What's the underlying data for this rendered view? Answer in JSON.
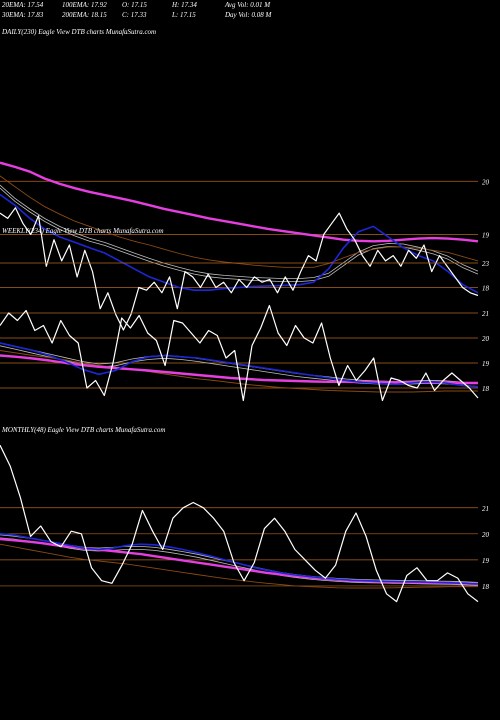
{
  "header": {
    "stats": [
      [
        "20EMA: 17.54",
        "100EMA: 17.92",
        "O: 17.15",
        "H: 17.34",
        "Avg Vol: 0.01 M"
      ],
      [
        "30EMA: 17.83",
        "200EMA: 18.15",
        "C: 17.33",
        "L: 17.15",
        "Day Vol: 0.08 M"
      ]
    ]
  },
  "colors": {
    "background": "#000000",
    "price": "#ffffff",
    "ema_short": "#1c27d6",
    "ema_long": "#e53fe0",
    "ema_mid_brown": "#8a4a12",
    "ema_grey": "#bdbdbd",
    "gridline": "#b4641e"
  },
  "chart_data": [
    {
      "type": "line",
      "panel": "daily",
      "title": "DAILY(230) Eagle  View  DTB charts MunafaSutra.com",
      "y_ticks": [
        "20",
        "19",
        "18"
      ],
      "ylim": [
        17.2,
        20.4
      ],
      "series": [
        {
          "key": "price",
          "values": [
            19.4,
            19.3,
            19.5,
            19.2,
            19.0,
            19.35,
            18.4,
            18.9,
            18.5,
            18.8,
            18.2,
            18.7,
            18.3,
            17.6,
            17.9,
            17.5,
            17.2,
            17.5,
            18.0,
            17.95,
            18.1,
            17.9,
            18.2,
            17.6,
            18.3,
            18.2,
            18.0,
            18.25,
            18.0,
            18.1,
            17.9,
            18.15,
            18.0,
            18.2,
            18.1,
            18.15,
            17.9,
            18.2,
            17.95,
            18.3,
            18.6,
            18.5,
            19.0,
            19.2,
            19.4,
            19.1,
            18.9,
            18.6,
            18.4,
            18.7,
            18.5,
            18.6,
            18.4,
            18.7,
            18.55,
            18.8,
            18.3,
            18.6,
            18.4,
            18.2,
            18.0,
            17.9,
            17.85
          ]
        },
        {
          "key": "ema_short",
          "values": [
            19.75,
            19.55,
            19.3,
            19.1,
            18.95,
            18.85,
            18.75,
            18.65,
            18.5,
            18.35,
            18.2,
            18.1,
            18.0,
            17.95,
            17.95,
            17.98,
            18.0,
            18.02,
            18.03,
            18.04,
            18.05,
            18.1,
            18.35,
            18.75,
            19.05,
            19.15,
            18.95,
            18.75,
            18.6,
            18.5,
            18.3,
            18.05,
            17.9
          ]
        },
        {
          "key": "ema_long",
          "values": [
            20.35,
            20.27,
            20.18,
            20.05,
            19.95,
            19.87,
            19.8,
            19.74,
            19.68,
            19.62,
            19.55,
            19.48,
            19.42,
            19.36,
            19.3,
            19.25,
            19.2,
            19.15,
            19.1,
            19.06,
            19.02,
            18.98,
            18.94,
            18.9,
            18.88,
            18.87,
            18.88,
            18.9,
            18.92,
            18.93,
            18.92,
            18.9,
            18.87
          ]
        },
        {
          "key": "ema_grey",
          "values": [
            19.9,
            19.65,
            19.45,
            19.27,
            19.12,
            19.0,
            18.9,
            18.82,
            18.72,
            18.62,
            18.52,
            18.43,
            18.35,
            18.28,
            18.23,
            18.2,
            18.18,
            18.16,
            18.15,
            18.14,
            18.14,
            18.16,
            18.24,
            18.44,
            18.64,
            18.76,
            18.8,
            18.79,
            18.73,
            18.66,
            18.56,
            18.4,
            18.28
          ]
        },
        {
          "key": "ema_mid_brown",
          "values": [
            20.1,
            19.9,
            19.7,
            19.52,
            19.38,
            19.25,
            19.15,
            19.05,
            18.95,
            18.87,
            18.8,
            18.72,
            18.64,
            18.57,
            18.52,
            18.48,
            18.45,
            18.42,
            18.4,
            18.38,
            18.38,
            18.38,
            18.45,
            18.56,
            18.66,
            18.72,
            18.76,
            18.76,
            18.74,
            18.7,
            18.66,
            18.58,
            18.5
          ]
        }
      ]
    },
    {
      "type": "line",
      "panel": "weekly",
      "title": "WEEKLY(234) Eagle  View  DTB charts MunafaSutra.com",
      "y_ticks": [
        "23",
        "21",
        "20",
        "19",
        "18"
      ],
      "ylim": [
        16.8,
        23.6
      ],
      "series": [
        {
          "key": "price",
          "values": [
            20.5,
            21.0,
            20.7,
            21.1,
            20.3,
            20.5,
            19.8,
            20.7,
            20.1,
            19.8,
            18.0,
            18.3,
            17.7,
            19.0,
            20.8,
            20.4,
            20.9,
            20.2,
            19.9,
            18.9,
            20.7,
            20.6,
            20.2,
            19.8,
            20.3,
            20.1,
            19.2,
            19.5,
            17.5,
            19.7,
            20.4,
            21.3,
            20.2,
            19.7,
            20.5,
            20.0,
            19.8,
            20.6,
            19.2,
            18.1,
            18.9,
            18.3,
            18.7,
            19.2,
            17.5,
            18.4,
            18.3,
            18.1,
            18.0,
            18.6,
            17.9,
            18.3,
            18.6,
            18.3,
            18.0,
            17.6
          ]
        },
        {
          "key": "ema_short",
          "values": [
            19.8,
            19.65,
            19.5,
            19.3,
            19.05,
            18.75,
            18.55,
            18.7,
            19.05,
            19.25,
            19.3,
            19.25,
            19.2,
            19.1,
            19.0,
            18.9,
            18.8,
            18.7,
            18.6,
            18.5,
            18.4,
            18.3,
            18.22,
            18.18,
            18.15,
            18.2,
            18.25,
            18.2,
            18.1,
            18.05
          ]
        },
        {
          "key": "ema_long",
          "values": [
            19.3,
            19.25,
            19.18,
            19.1,
            19.0,
            18.92,
            18.85,
            18.8,
            18.75,
            18.7,
            18.64,
            18.58,
            18.52,
            18.46,
            18.4,
            18.36,
            18.32,
            18.3,
            18.28,
            18.26,
            18.25,
            18.25,
            18.24,
            18.24,
            18.23,
            18.23,
            18.22,
            18.22,
            18.2,
            18.2
          ]
        },
        {
          "key": "ema_grey",
          "values": [
            19.75,
            19.6,
            19.45,
            19.3,
            19.15,
            19.0,
            18.9,
            18.95,
            19.1,
            19.2,
            19.25,
            19.2,
            19.12,
            19.02,
            18.92,
            18.82,
            18.72,
            18.62,
            18.52,
            18.45,
            18.38,
            18.3,
            18.25,
            18.22,
            18.2,
            18.22,
            18.25,
            18.23,
            18.18,
            18.12
          ]
        },
        {
          "key": "ema_mid_brown",
          "values": [
            19.5,
            19.4,
            19.3,
            19.22,
            19.12,
            19.0,
            18.9,
            18.82,
            18.75,
            18.66,
            18.56,
            18.46,
            18.37,
            18.3,
            18.22,
            18.14,
            18.08,
            18.02,
            17.98,
            17.94,
            17.9,
            17.88,
            17.86,
            17.84,
            17.84,
            17.84,
            17.86,
            17.88,
            17.88,
            17.88
          ]
        }
      ]
    },
    {
      "type": "line",
      "panel": "monthly",
      "title": "MONTHLY(48) Eagle  View  DTB charts MunafaSutra.com",
      "y_ticks": [
        "21",
        "20",
        "19",
        "18"
      ],
      "ylim": [
        17.0,
        23.6
      ],
      "series": [
        {
          "key": "price",
          "values": [
            23.4,
            22.6,
            21.4,
            19.9,
            20.3,
            19.7,
            19.5,
            20.1,
            20.0,
            18.7,
            18.2,
            18.1,
            18.8,
            19.6,
            20.9,
            20.1,
            19.4,
            20.6,
            21.0,
            21.2,
            21.0,
            20.6,
            20.1,
            18.9,
            18.2,
            18.9,
            20.2,
            20.6,
            20.1,
            19.4,
            19.0,
            18.6,
            18.3,
            18.8,
            20.1,
            20.8,
            19.9,
            18.6,
            17.7,
            17.4,
            18.4,
            18.7,
            18.2,
            18.2,
            18.5,
            18.3,
            17.7,
            17.4
          ]
        },
        {
          "key": "ema_short",
          "values": [
            20.0,
            19.95,
            19.85,
            19.75,
            19.65,
            19.55,
            19.45,
            19.4,
            19.45,
            19.55,
            19.6,
            19.58,
            19.5,
            19.4,
            19.28,
            19.14,
            19.0,
            18.86,
            18.72,
            18.6,
            18.5,
            18.42,
            18.36,
            18.3,
            18.26,
            18.22,
            18.2,
            18.18,
            18.17,
            18.16,
            18.15,
            18.14,
            18.12,
            18.1,
            18.08
          ]
        },
        {
          "key": "ema_long",
          "values": [
            19.8,
            19.75,
            19.7,
            19.64,
            19.56,
            19.5,
            19.44,
            19.4,
            19.34,
            19.28,
            19.22,
            19.14,
            19.06,
            18.98,
            18.9,
            18.82,
            18.74,
            18.66,
            18.58,
            18.5,
            18.44,
            18.38,
            18.32,
            18.28,
            18.24,
            18.2,
            18.18,
            18.16,
            18.15,
            18.14,
            18.13,
            18.12,
            18.11,
            18.1,
            18.08
          ]
        },
        {
          "key": "ema_grey",
          "values": [
            19.9,
            19.85,
            19.78,
            19.7,
            19.6,
            19.5,
            19.42,
            19.4,
            19.42,
            19.46,
            19.46,
            19.42,
            19.35,
            19.26,
            19.16,
            19.04,
            18.92,
            18.8,
            18.68,
            18.56,
            18.46,
            18.38,
            18.32,
            18.27,
            18.23,
            18.2,
            18.18,
            18.17,
            18.16,
            18.15,
            18.14,
            18.13,
            18.12,
            18.1,
            18.08
          ]
        },
        {
          "key": "ema_mid_brown",
          "values": [
            19.6,
            19.5,
            19.4,
            19.3,
            19.2,
            19.1,
            19.02,
            18.96,
            18.9,
            18.84,
            18.76,
            18.68,
            18.6,
            18.52,
            18.44,
            18.36,
            18.28,
            18.22,
            18.16,
            18.1,
            18.05,
            18.0,
            17.97,
            17.95,
            17.93,
            17.92,
            17.92,
            17.92,
            17.93,
            17.94,
            17.95,
            17.96,
            17.97,
            17.97,
            17.97
          ]
        }
      ]
    }
  ]
}
